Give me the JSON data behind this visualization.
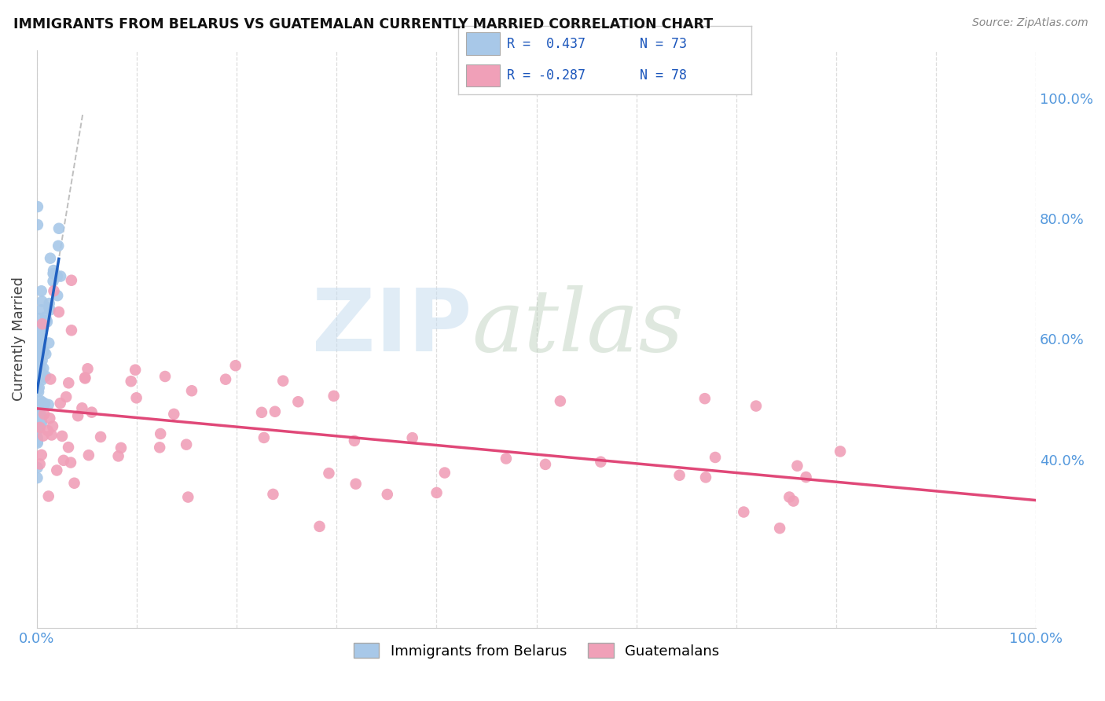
{
  "title": "IMMIGRANTS FROM BELARUS VS GUATEMALAN CURRENTLY MARRIED CORRELATION CHART",
  "source": "Source: ZipAtlas.com",
  "ylabel": "Currently Married",
  "legend_label_blue": "Immigrants from Belarus",
  "legend_label_pink": "Guatemalans",
  "blue_color": "#a8c8e8",
  "pink_color": "#f0a0b8",
  "blue_line_color": "#2060c0",
  "pink_line_color": "#e04878",
  "blue_dot_edge": "none",
  "pink_dot_edge": "none",
  "background_color": "#ffffff",
  "grid_color": "#dddddd",
  "right_tick_color": "#5599dd",
  "xlim": [
    0.0,
    1.0
  ],
  "ylim": [
    0.12,
    1.08
  ],
  "right_yticks_vals": [
    1.0,
    0.8,
    0.6,
    0.4
  ],
  "right_yticks_labels": [
    "100.0%",
    "80.0%",
    "60.0%",
    "40.0%"
  ],
  "xtick_labels": [
    "0.0%",
    "",
    "",
    "",
    "",
    "",
    "",
    "",
    "",
    "",
    "100.0%"
  ],
  "legend_R_blue": "R =  0.437",
  "legend_N_blue": "N = 73",
  "legend_R_pink": "R = -0.287",
  "legend_N_pink": "N = 78",
  "watermark_zip": "ZIP",
  "watermark_atlas": "atlas",
  "blue_scatter_seed": 101,
  "pink_scatter_seed": 202
}
